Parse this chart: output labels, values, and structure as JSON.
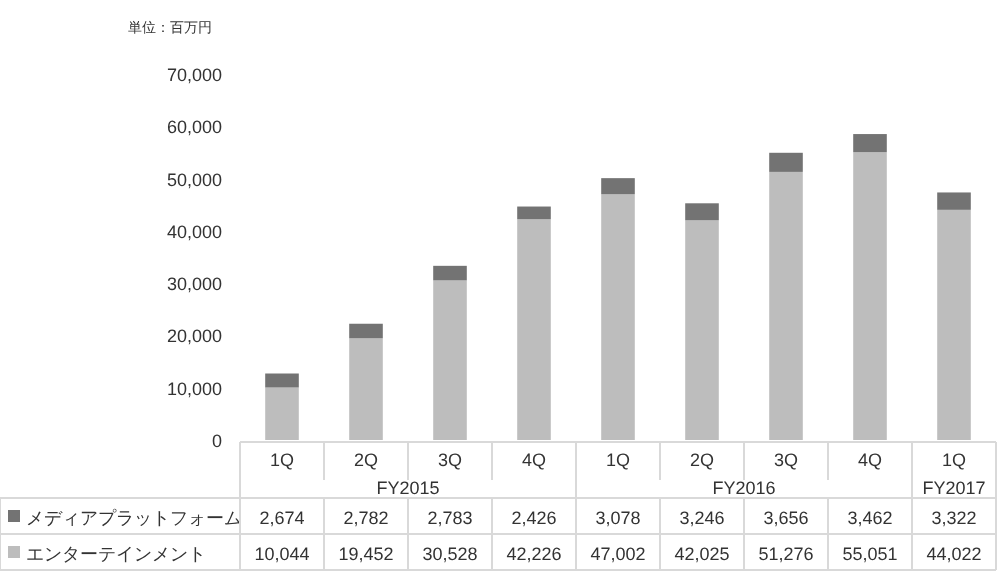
{
  "chart_data": {
    "type": "bar",
    "stacked": true,
    "ylabel": "単位：百万円",
    "categories": [
      "1Q",
      "2Q",
      "3Q",
      "4Q",
      "1Q",
      "2Q",
      "3Q",
      "4Q",
      "1Q"
    ],
    "annotations": [
      "FY2015",
      "FY2016",
      "FY2017"
    ],
    "series": [
      {
        "name": "エンターテインメント",
        "color": "#bdbdbd",
        "values": [
          10044,
          19452,
          30528,
          42226,
          47002,
          42025,
          51276,
          55051,
          44022
        ],
        "value_labels": [
          "10,044",
          "19,452",
          "30,528",
          "42,226",
          "47,002",
          "42,025",
          "51,276",
          "55,051",
          "44,022"
        ]
      },
      {
        "name": "メディアプラットフォーム",
        "color": "#737373",
        "values": [
          2674,
          2782,
          2783,
          2426,
          3078,
          3246,
          3656,
          3462,
          3322
        ],
        "value_labels": [
          "2,674",
          "2,782",
          "2,783",
          "2,426",
          "3,078",
          "3,246",
          "3,656",
          "3,462",
          "3,322"
        ]
      }
    ],
    "ylim": [
      0,
      70000
    ],
    "yticks": [
      0,
      {
        "value": 10000,
        "label": "10,000"
      },
      {
        "value": 20000,
        "label": "20,000"
      },
      {
        "value": 30000,
        "label": "30,000"
      },
      {
        "value": 40000,
        "label": "40,000"
      },
      {
        "value": 50000,
        "label": "50,000"
      },
      {
        "value": 60000,
        "label": "60,000"
      },
      {
        "value": 70000,
        "label": "70,000"
      }
    ],
    "legend": "bottom left"
  }
}
